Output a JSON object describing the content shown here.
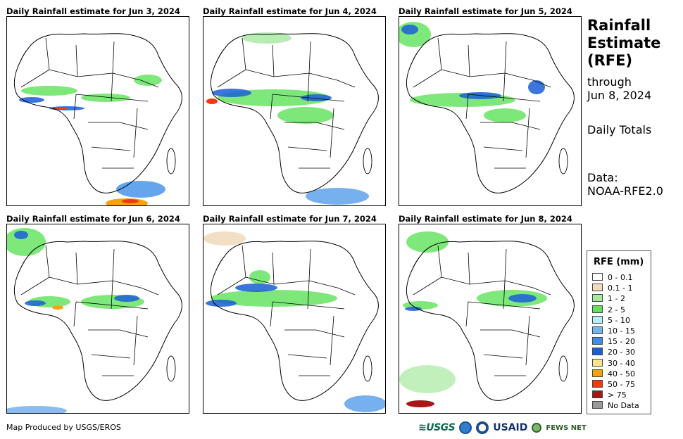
{
  "panels": [
    {
      "title": "Daily Rainfall estimate for Jun 3, 2024"
    },
    {
      "title": "Daily Rainfall estimate for Jun 4, 2024"
    },
    {
      "title": "Daily Rainfall estimate for Jun 5, 2024"
    },
    {
      "title": "Daily Rainfall estimate for Jun 6, 2024"
    },
    {
      "title": "Daily Rainfall estimate for Jun 7, 2024"
    },
    {
      "title": "Daily Rainfall estimate for Jun 8, 2024"
    }
  ],
  "side": {
    "title_line1": "Rainfall",
    "title_line2": "Estimate",
    "title_line3": "(RFE)",
    "through": "through",
    "date": "Jun 8, 2024",
    "totals": "Daily Totals",
    "data_label": "Data:",
    "data_source": "NOAA-RFE2.0"
  },
  "legend": {
    "title": "RFE (mm)",
    "items": [
      {
        "label": "0 - 0.1",
        "color": "#ffffff"
      },
      {
        "label": "0.1 - 1",
        "color": "#f1dcc0"
      },
      {
        "label": "1 - 2",
        "color": "#a6e9a1"
      },
      {
        "label": "2 - 5",
        "color": "#5fe25a"
      },
      {
        "label": "5 - 10",
        "color": "#b4eef7"
      },
      {
        "label": "10 - 15",
        "color": "#74b5ef"
      },
      {
        "label": "15 - 20",
        "color": "#3d8ee8"
      },
      {
        "label": "20 - 30",
        "color": "#1a5ed6"
      },
      {
        "label": "30 - 40",
        "color": "#fbe48c"
      },
      {
        "label": "40 - 50",
        "color": "#f5a20c"
      },
      {
        "label": "50 - 75",
        "color": "#f03a0a"
      },
      {
        "label": "> 75",
        "color": "#a61818"
      },
      {
        "label": "No Data",
        "color": "#9a9a9a"
      }
    ]
  },
  "footer": {
    "credit": "Map Produced by USGS/EROS",
    "logo_usgs": "≋USGS",
    "logo_usaid": "USAID",
    "logo_fews": "FEWS NET"
  }
}
